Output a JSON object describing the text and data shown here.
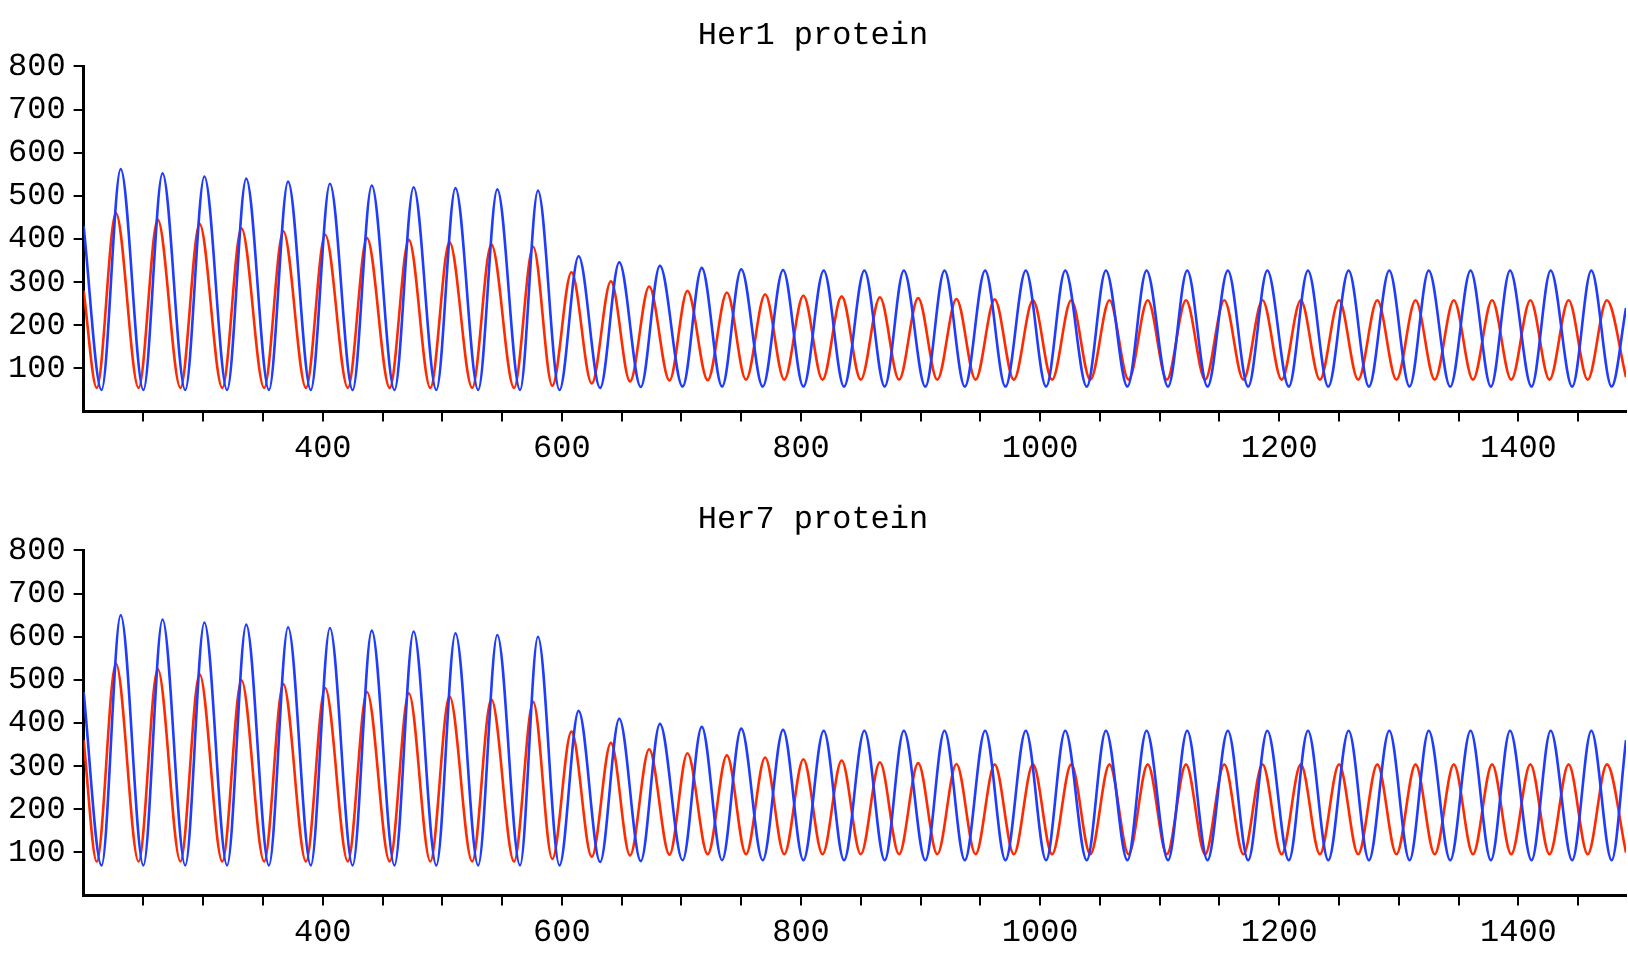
{
  "chart_data": [
    {
      "type": "line",
      "title": "Her1 protein",
      "xlim": [
        200,
        1490
      ],
      "ylim": [
        0,
        800
      ],
      "marker": "none",
      "line_style": "solid",
      "xticks": [
        {
          "value": 250,
          "label": null
        },
        {
          "value": 300,
          "label": null
        },
        {
          "value": 350,
          "label": null
        },
        400,
        {
          "value": 450,
          "label": null
        },
        {
          "value": 500,
          "label": null
        },
        {
          "value": 550,
          "label": null
        },
        600,
        {
          "value": 650,
          "label": null
        },
        {
          "value": 700,
          "label": null
        },
        {
          "value": 750,
          "label": null
        },
        800,
        {
          "value": 850,
          "label": null
        },
        {
          "value": 900,
          "label": null
        },
        {
          "value": 950,
          "label": null
        },
        1000,
        {
          "value": 1050,
          "label": null
        },
        {
          "value": 1100,
          "label": null
        },
        {
          "value": 1150,
          "label": null
        },
        1200,
        {
          "value": 1250,
          "label": null
        },
        {
          "value": 1300,
          "label": null
        },
        {
          "value": 1350,
          "label": null
        },
        1400,
        {
          "value": 1450,
          "label": null
        }
      ],
      "yticks": [
        100,
        200,
        300,
        400,
        500,
        600,
        700,
        800
      ],
      "series": [
        {
          "color": "#1f3cff",
          "x": [
            200,
            215,
            231,
            250,
            266,
            285,
            301,
            320,
            336,
            355,
            371,
            390,
            406,
            425,
            441,
            460,
            476,
            495,
            511,
            530,
            546,
            565,
            580,
            598,
            614,
            632,
            648,
            666,
            682,
            701,
            717,
            734,
            750,
            768,
            785,
            802,
            819,
            836,
            853,
            870,
            886,
            904,
            920,
            937,
            954,
            971,
            988,
            1005,
            1021,
            1039,
            1055,
            1073,
            1089,
            1107,
            1123,
            1140,
            1157,
            1174,
            1190,
            1208,
            1224,
            1241,
            1258,
            1275,
            1292,
            1309,
            1325,
            1343,
            1360,
            1377,
            1393,
            1411,
            1427,
            1445,
            1461,
            1478,
            1490
          ],
          "values": [
            430,
            50,
            562,
            50,
            552,
            50,
            545,
            50,
            540,
            50,
            533,
            50,
            528,
            50,
            524,
            50,
            520,
            50,
            518,
            50,
            515,
            50,
            512,
            50,
            360,
            55,
            346,
            57,
            338,
            58,
            333,
            58,
            330,
            58,
            328,
            58,
            327,
            58,
            327,
            58,
            327,
            58,
            327,
            58,
            327,
            58,
            327,
            58,
            327,
            58,
            327,
            58,
            327,
            58,
            327,
            58,
            327,
            58,
            327,
            58,
            327,
            58,
            327,
            58,
            327,
            58,
            327,
            58,
            327,
            58,
            327,
            58,
            327,
            58,
            327,
            58,
            240
          ]
        },
        {
          "color": "#ff2a00",
          "x": [
            200,
            211,
            227,
            246,
            262,
            281,
            297,
            316,
            332,
            351,
            367,
            386,
            402,
            421,
            437,
            456,
            472,
            490,
            506,
            525,
            541,
            560,
            576,
            592,
            608,
            625,
            641,
            657,
            673,
            690,
            705,
            722,
            738,
            754,
            770,
            786,
            802,
            818,
            834,
            850,
            866,
            882,
            898,
            914,
            930,
            946,
            962,
            978,
            994,
            1010,
            1026,
            1042,
            1058,
            1074,
            1090,
            1106,
            1122,
            1138,
            1154,
            1170,
            1186,
            1202,
            1218,
            1234,
            1250,
            1266,
            1282,
            1298,
            1314,
            1330,
            1346,
            1362,
            1378,
            1394,
            1410,
            1426,
            1442,
            1458,
            1474,
            1490
          ],
          "values": [
            280,
            55,
            460,
            55,
            445,
            55,
            435,
            55,
            425,
            55,
            418,
            55,
            410,
            55,
            402,
            55,
            398,
            55,
            393,
            55,
            388,
            55,
            382,
            60,
            323,
            65,
            302,
            70,
            290,
            72,
            280,
            73,
            276,
            74,
            272,
            74,
            269,
            74,
            267,
            74,
            265,
            74,
            263,
            74,
            261,
            74,
            260,
            74,
            258,
            74,
            258,
            74,
            258,
            74,
            258,
            74,
            258,
            74,
            258,
            74,
            258,
            74,
            258,
            74,
            258,
            74,
            258,
            74,
            258,
            74,
            258,
            74,
            258,
            74,
            258,
            74,
            258,
            74,
            258,
            80
          ]
        }
      ]
    },
    {
      "type": "line",
      "title": "Her7 protein",
      "xlim": [
        200,
        1490
      ],
      "ylim": [
        0,
        800
      ],
      "marker": "none",
      "line_style": "solid",
      "xticks": [
        {
          "value": 250,
          "label": null
        },
        {
          "value": 300,
          "label": null
        },
        {
          "value": 350,
          "label": null
        },
        400,
        {
          "value": 450,
          "label": null
        },
        {
          "value": 500,
          "label": null
        },
        {
          "value": 550,
          "label": null
        },
        600,
        {
          "value": 650,
          "label": null
        },
        {
          "value": 700,
          "label": null
        },
        {
          "value": 750,
          "label": null
        },
        800,
        {
          "value": 850,
          "label": null
        },
        {
          "value": 900,
          "label": null
        },
        {
          "value": 950,
          "label": null
        },
        1000,
        {
          "value": 1050,
          "label": null
        },
        {
          "value": 1100,
          "label": null
        },
        {
          "value": 1150,
          "label": null
        },
        1200,
        {
          "value": 1250,
          "label": null
        },
        {
          "value": 1300,
          "label": null
        },
        {
          "value": 1350,
          "label": null
        },
        1400,
        {
          "value": 1450,
          "label": null
        }
      ],
      "yticks": [
        100,
        200,
        300,
        400,
        500,
        600,
        700,
        800
      ],
      "series": [
        {
          "color": "#1f3cff",
          "x": [
            200,
            215,
            231,
            250,
            266,
            285,
            301,
            320,
            336,
            355,
            371,
            390,
            406,
            425,
            441,
            460,
            476,
            495,
            511,
            530,
            546,
            565,
            580,
            598,
            614,
            632,
            648,
            666,
            682,
            701,
            717,
            734,
            750,
            768,
            785,
            802,
            819,
            836,
            853,
            870,
            886,
            904,
            920,
            937,
            954,
            971,
            988,
            1005,
            1021,
            1039,
            1055,
            1073,
            1089,
            1107,
            1123,
            1140,
            1157,
            1174,
            1190,
            1208,
            1224,
            1241,
            1258,
            1275,
            1292,
            1309,
            1325,
            1343,
            1360,
            1377,
            1393,
            1411,
            1427,
            1445,
            1461,
            1478,
            1490
          ],
          "values": [
            472,
            70,
            650,
            70,
            640,
            70,
            633,
            70,
            628,
            70,
            622,
            70,
            620,
            70,
            614,
            70,
            612,
            70,
            608,
            70,
            604,
            70,
            600,
            70,
            428,
            78,
            410,
            80,
            398,
            82,
            391,
            82,
            387,
            82,
            384,
            82,
            382,
            82,
            382,
            82,
            382,
            82,
            382,
            82,
            382,
            82,
            382,
            82,
            382,
            82,
            382,
            82,
            382,
            82,
            382,
            82,
            382,
            82,
            382,
            82,
            382,
            82,
            382,
            82,
            382,
            82,
            382,
            82,
            382,
            82,
            382,
            82,
            382,
            82,
            382,
            82,
            360
          ]
        },
        {
          "color": "#ff2a00",
          "x": [
            200,
            211,
            227,
            246,
            262,
            281,
            297,
            316,
            332,
            351,
            367,
            386,
            402,
            421,
            437,
            456,
            472,
            490,
            506,
            525,
            541,
            560,
            576,
            592,
            608,
            625,
            641,
            657,
            673,
            690,
            705,
            722,
            738,
            754,
            770,
            786,
            802,
            818,
            834,
            850,
            866,
            882,
            898,
            914,
            930,
            946,
            962,
            978,
            994,
            1010,
            1026,
            1042,
            1058,
            1074,
            1090,
            1106,
            1122,
            1138,
            1154,
            1170,
            1186,
            1202,
            1218,
            1234,
            1250,
            1266,
            1282,
            1298,
            1314,
            1330,
            1346,
            1362,
            1378,
            1394,
            1410,
            1426,
            1442,
            1458,
            1474,
            1490
          ],
          "values": [
            360,
            79,
            538,
            79,
            525,
            79,
            513,
            79,
            499,
            79,
            490,
            79,
            481,
            79,
            472,
            79,
            469,
            79,
            462,
            79,
            455,
            79,
            449,
            85,
            380,
            90,
            354,
            93,
            339,
            95,
            330,
            96,
            325,
            96,
            320,
            96,
            316,
            96,
            313,
            96,
            309,
            96,
            307,
            96,
            305,
            96,
            304,
            96,
            304,
            96,
            304,
            96,
            304,
            96,
            304,
            96,
            304,
            96,
            304,
            96,
            304,
            96,
            304,
            96,
            304,
            96,
            304,
            96,
            304,
            96,
            304,
            96,
            304,
            96,
            304,
            96,
            304,
            96,
            304,
            100
          ]
        }
      ]
    }
  ]
}
